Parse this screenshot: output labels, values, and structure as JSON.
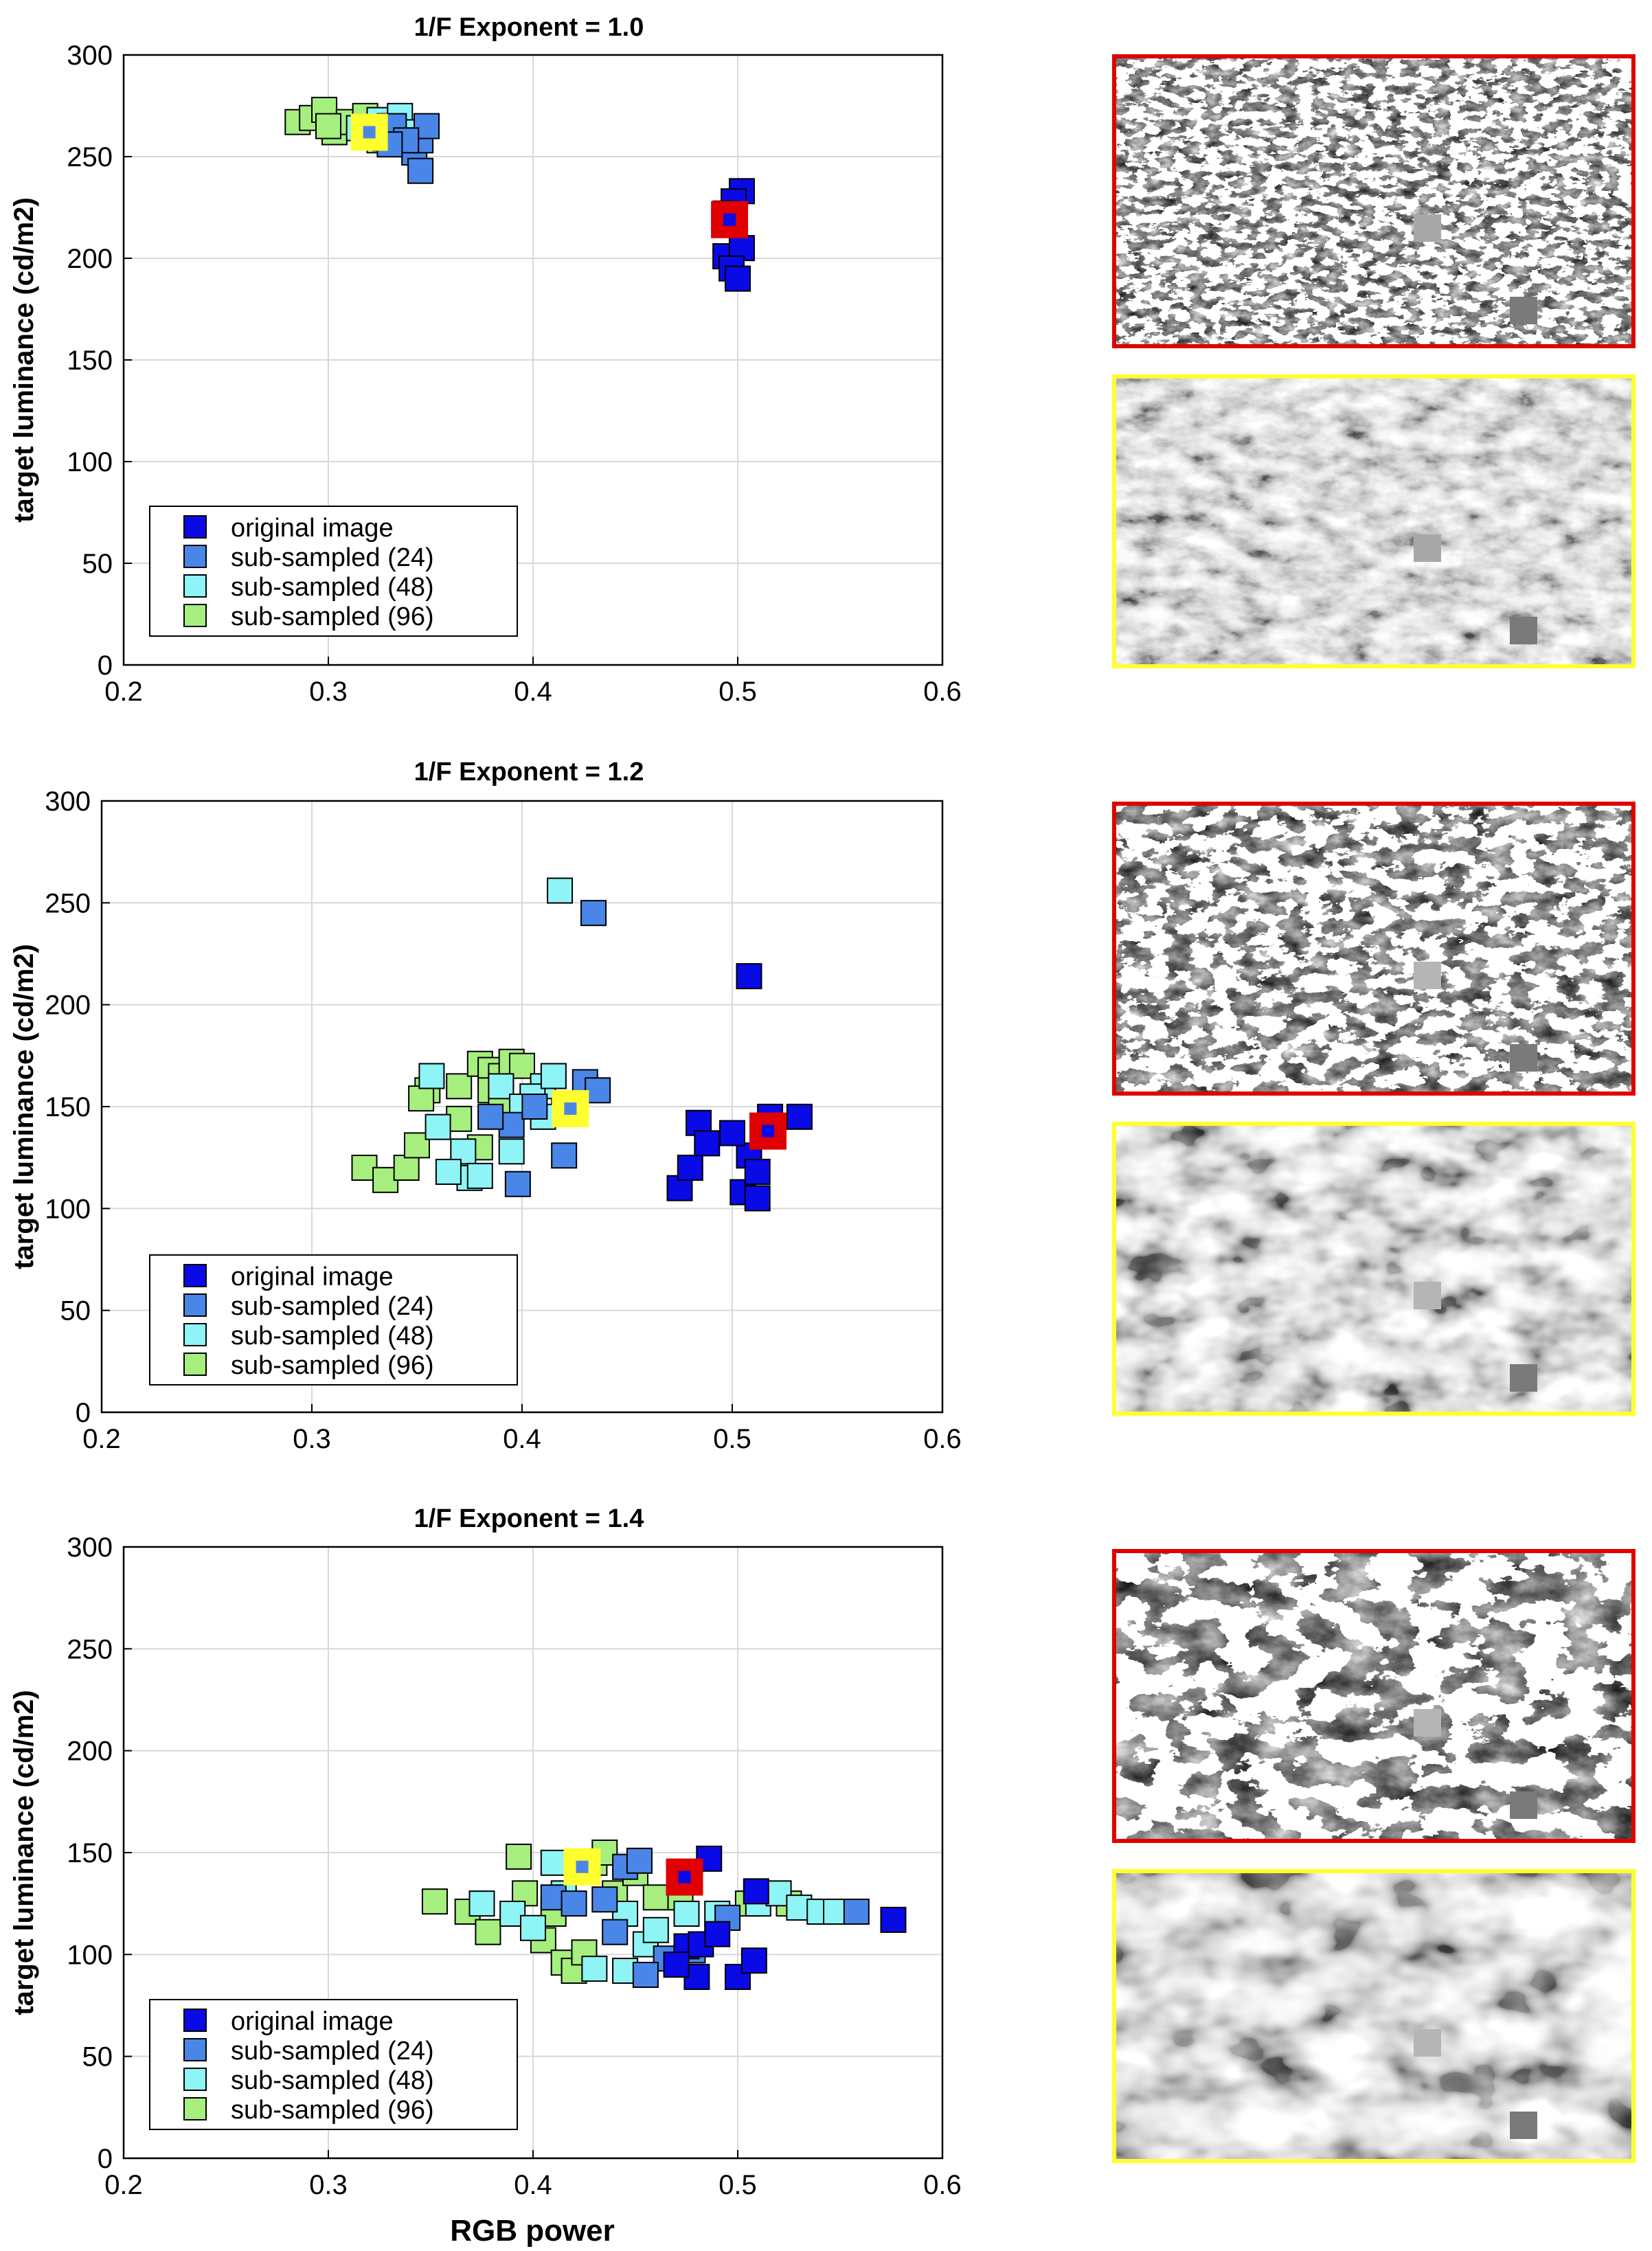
{
  "colors": {
    "original": "#0a0ae6",
    "sub24": "#4a86e8",
    "sub48": "#8ff4f6",
    "sub96": "#a6ee7e",
    "highlight_red": "#e00000",
    "highlight_yellow": "#ffff30",
    "axis": "#000000",
    "grid": "#d8d8d8"
  },
  "legend_labels": [
    "original image",
    "sub-sampled (24)",
    "sub-sampled (48)",
    "sub-sampled (96)"
  ],
  "chart_data": [
    {
      "type": "scatter",
      "title": "1/F Exponent = 1.0",
      "xlabel": "",
      "ylabel": "target luminance (cd/m2)",
      "xlim": [
        0.2,
        0.6
      ],
      "ylim": [
        0,
        300
      ],
      "xticks": [
        "0.2",
        "0.3",
        "0.4",
        "0.5",
        "0.6"
      ],
      "yticks": [
        "0",
        "50",
        "100",
        "150",
        "200",
        "250",
        "300"
      ],
      "grid": true,
      "legend_position": "lower-left",
      "highlight_red": {
        "x": 0.496,
        "y": 219
      },
      "highlight_yellow": {
        "x": 0.32,
        "y": 262
      },
      "series": [
        {
          "name": "sub-sampled (96)",
          "points": [
            [
              0.285,
              267
            ],
            [
              0.292,
              269
            ],
            [
              0.298,
              273
            ],
            [
              0.303,
              262
            ],
            [
              0.31,
              267
            ],
            [
              0.318,
              270
            ],
            [
              0.3,
              265
            ],
            [
              0.325,
              258
            ]
          ]
        },
        {
          "name": "sub-sampled (48)",
          "points": [
            [
              0.315,
              264
            ],
            [
              0.325,
              268
            ],
            [
              0.33,
              265
            ],
            [
              0.335,
              270
            ],
            [
              0.328,
              259
            ],
            [
              0.338,
              262
            ]
          ]
        },
        {
          "name": "sub-sampled (24)",
          "points": [
            [
              0.332,
              265
            ],
            [
              0.342,
              252
            ],
            [
              0.345,
              258
            ],
            [
              0.348,
              265
            ],
            [
              0.345,
              243
            ],
            [
              0.338,
              258
            ],
            [
              0.33,
              256
            ]
          ]
        },
        {
          "name": "original image",
          "points": [
            [
              0.502,
              233
            ],
            [
              0.498,
              228
            ],
            [
              0.494,
              222
            ],
            [
              0.494,
              201
            ],
            [
              0.502,
              205
            ],
            [
              0.497,
              195
            ],
            [
              0.5,
              190
            ]
          ]
        }
      ]
    },
    {
      "type": "scatter",
      "title": "1/F Exponent = 1.2",
      "xlabel": "",
      "ylabel": "target luminance (cd/m2)",
      "xlim": [
        0.2,
        0.6
      ],
      "ylim": [
        0,
        300
      ],
      "xticks": [
        "0.2",
        "0.3",
        "0.4",
        "0.5",
        "0.6"
      ],
      "yticks": [
        "0",
        "50",
        "100",
        "150",
        "200",
        "250",
        "300"
      ],
      "grid": true,
      "legend_position": "lower-left",
      "highlight_red": {
        "x": 0.517,
        "y": 138
      },
      "highlight_yellow": {
        "x": 0.423,
        "y": 149
      },
      "series": [
        {
          "name": "sub-sampled (96)",
          "points": [
            [
              0.325,
              120
            ],
            [
              0.335,
              114
            ],
            [
              0.345,
              120
            ],
            [
              0.35,
              131
            ],
            [
              0.355,
              158
            ],
            [
              0.352,
              154
            ],
            [
              0.37,
              160
            ],
            [
              0.38,
              171
            ],
            [
              0.385,
              168
            ],
            [
              0.39,
              165
            ],
            [
              0.395,
              172
            ],
            [
              0.4,
              170
            ],
            [
              0.385,
              158
            ],
            [
              0.37,
              144
            ],
            [
              0.38,
              130
            ],
            [
              0.39,
              150
            ]
          ]
        },
        {
          "name": "sub-sampled (48)",
          "points": [
            [
              0.357,
              165
            ],
            [
              0.36,
              140
            ],
            [
              0.372,
              128
            ],
            [
              0.375,
              115
            ],
            [
              0.38,
              116
            ],
            [
              0.395,
              128
            ],
            [
              0.41,
              160
            ],
            [
              0.405,
              155
            ],
            [
              0.415,
              165
            ],
            [
              0.42,
              148
            ],
            [
              0.39,
              160
            ],
            [
              0.365,
              118
            ],
            [
              0.418,
              256
            ],
            [
              0.4,
              150
            ],
            [
              0.41,
              145
            ]
          ]
        },
        {
          "name": "sub-sampled (24)",
          "points": [
            [
              0.395,
              141
            ],
            [
              0.398,
              112
            ],
            [
              0.43,
              162
            ],
            [
              0.436,
              158
            ],
            [
              0.42,
              126
            ],
            [
              0.406,
              150
            ],
            [
              0.434,
              245
            ],
            [
              0.385,
              145
            ]
          ]
        },
        {
          "name": "original image",
          "points": [
            [
              0.508,
              214
            ],
            [
              0.475,
              110
            ],
            [
              0.48,
              120
            ],
            [
              0.484,
              142
            ],
            [
              0.488,
              132
            ],
            [
              0.508,
              126
            ],
            [
              0.505,
              108
            ],
            [
              0.512,
              118
            ],
            [
              0.518,
              145
            ],
            [
              0.512,
              105
            ],
            [
              0.532,
              145
            ],
            [
              0.5,
              137
            ]
          ]
        }
      ]
    },
    {
      "type": "scatter",
      "title": "1/F Exponent = 1.4",
      "xlabel": "RGB power",
      "ylabel": "target luminance (cd/m2)",
      "xlim": [
        0.2,
        0.6
      ],
      "ylim": [
        0,
        300
      ],
      "xticks": [
        "0.2",
        "0.3",
        "0.4",
        "0.5",
        "0.6"
      ],
      "yticks": [
        "0",
        "50",
        "100",
        "150",
        "200",
        "250",
        "300"
      ],
      "grid": true,
      "legend_position": "lower-left",
      "highlight_red": {
        "x": 0.474,
        "y": 138
      },
      "highlight_yellow": {
        "x": 0.424,
        "y": 143
      },
      "series": [
        {
          "name": "sub-sampled (96)",
          "points": [
            [
              0.352,
              126
            ],
            [
              0.368,
              121
            ],
            [
              0.378,
              111
            ],
            [
              0.393,
              148
            ],
            [
              0.396,
              130
            ],
            [
              0.405,
              107
            ],
            [
              0.41,
              120
            ],
            [
              0.415,
              96
            ],
            [
              0.42,
              92
            ],
            [
              0.425,
              101
            ],
            [
              0.43,
              145
            ],
            [
              0.435,
              150
            ],
            [
              0.44,
              130
            ],
            [
              0.45,
              140
            ],
            [
              0.46,
              128
            ],
            [
              0.505,
              125
            ],
            [
              0.525,
              125
            ],
            [
              0.472,
              128
            ]
          ]
        },
        {
          "name": "sub-sampled (48)",
          "points": [
            [
              0.375,
              125
            ],
            [
              0.39,
              120
            ],
            [
              0.4,
              113
            ],
            [
              0.41,
              145
            ],
            [
              0.415,
              130
            ],
            [
              0.43,
              93
            ],
            [
              0.445,
              120
            ],
            [
              0.455,
              105
            ],
            [
              0.46,
              112
            ],
            [
              0.475,
              120
            ],
            [
              0.49,
              120
            ],
            [
              0.51,
              125
            ],
            [
              0.52,
              130
            ],
            [
              0.53,
              123
            ],
            [
              0.54,
              121
            ],
            [
              0.548,
              121
            ],
            [
              0.445,
              92
            ]
          ]
        },
        {
          "name": "sub-sampled (24)",
          "points": [
            [
              0.41,
              128
            ],
            [
              0.42,
              125
            ],
            [
              0.435,
              127
            ],
            [
              0.44,
              111
            ],
            [
              0.445,
              143
            ],
            [
              0.452,
              146
            ],
            [
              0.465,
              98
            ],
            [
              0.478,
              102
            ],
            [
              0.495,
              118
            ],
            [
              0.558,
              121
            ],
            [
              0.455,
              90
            ]
          ]
        },
        {
          "name": "original image",
          "points": [
            [
              0.486,
              147
            ],
            [
              0.475,
              104
            ],
            [
              0.48,
              89
            ],
            [
              0.482,
              105
            ],
            [
              0.49,
              110
            ],
            [
              0.5,
              89
            ],
            [
              0.508,
              97
            ],
            [
              0.509,
              131
            ],
            [
              0.576,
              117
            ],
            [
              0.47,
              95
            ]
          ]
        }
      ]
    }
  ]
}
